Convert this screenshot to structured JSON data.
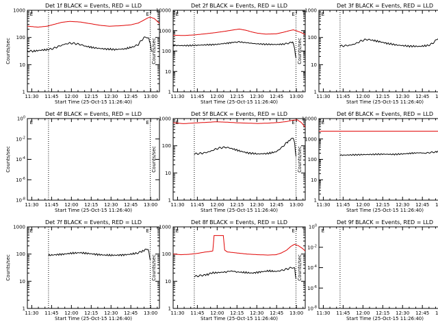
{
  "figure": {
    "start_time_label": "Start Time (25-Oct-15 11:26:40)",
    "ylabel": "Counts/sec",
    "time_ticks": [
      "11:30",
      "11:45",
      "12:00",
      "12:15",
      "12:30",
      "12:45",
      "13:00"
    ],
    "colors": {
      "events": "#000000",
      "lld": "#e00000",
      "axes": "#000000"
    }
  },
  "chart_data": [
    {
      "type": "line",
      "detector": "Det 1f",
      "title": "Det 1f BLACK = Events, RED = LLD",
      "xlabel": "Start Time (25-Oct-15 11:26:40)",
      "ylabel": "Counts/sec",
      "yscale": "log",
      "ylim": [
        1,
        1000
      ],
      "xlim_min": [
        0,
        100
      ],
      "y_tick_labels": [
        "1",
        "10",
        "100",
        "1000"
      ],
      "vlines_min": [
        16,
        93
      ],
      "markers": [
        {
          "label": "E",
          "x_min": 3,
          "y": 1000
        },
        {
          "label": "E",
          "x_min": 91,
          "y": 1000
        }
      ],
      "series": [
        {
          "name": "LLD",
          "color": "#e00000",
          "x": [
            0,
            8,
            15,
            22,
            26,
            32,
            40,
            48,
            55,
            62,
            70,
            78,
            84,
            88,
            91,
            93,
            96,
            100
          ],
          "y": [
            260,
            240,
            260,
            320,
            360,
            390,
            370,
            320,
            280,
            260,
            270,
            290,
            340,
            430,
            520,
            560,
            500,
            330
          ]
        },
        {
          "name": "Events",
          "color": "#000000",
          "x": [
            0,
            4,
            10,
            16,
            20,
            24,
            28,
            32,
            36,
            40,
            44,
            50,
            58,
            66,
            74,
            80,
            84,
            86,
            88,
            90,
            92,
            93,
            94
          ],
          "y": [
            32,
            31,
            34,
            36,
            40,
            48,
            56,
            62,
            60,
            55,
            48,
            42,
            38,
            36,
            38,
            45,
            55,
            75,
            95,
            105,
            90,
            60,
            30
          ]
        }
      ]
    },
    {
      "type": "line",
      "detector": "Det 2f",
      "title": "Det 2f BLACK = Events, RED = LLD",
      "xlabel": "Start Time (25-Oct-15 11:26:40)",
      "ylabel": "Counts/sec",
      "yscale": "log",
      "ylim": [
        1,
        10000
      ],
      "xlim_min": [
        0,
        100
      ],
      "y_tick_labels": [
        "1",
        "10",
        "100",
        "1000",
        "10000"
      ],
      "vlines_min": [
        16,
        93
      ],
      "markers": [
        {
          "label": "E",
          "x_min": 3,
          "y": 10000
        },
        {
          "label": "E",
          "x_min": 91,
          "y": 10000
        }
      ],
      "series": [
        {
          "name": "LLD",
          "color": "#e00000",
          "x": [
            0,
            8,
            16,
            24,
            32,
            40,
            46,
            50,
            55,
            60,
            64,
            70,
            78,
            84,
            88,
            91,
            94,
            97,
            100
          ],
          "y": [
            600,
            580,
            620,
            700,
            800,
            950,
            1100,
            1200,
            1050,
            850,
            750,
            680,
            700,
            850,
            1000,
            1100,
            950,
            800,
            650
          ]
        },
        {
          "name": "Events",
          "color": "#000000",
          "x": [
            0,
            8,
            16,
            24,
            32,
            40,
            46,
            50,
            55,
            62,
            70,
            78,
            84,
            88,
            90,
            91,
            92,
            93
          ],
          "y": [
            190,
            185,
            190,
            200,
            210,
            240,
            270,
            280,
            260,
            230,
            215,
            210,
            220,
            250,
            270,
            250,
            120,
            45
          ]
        }
      ]
    },
    {
      "type": "line",
      "detector": "Det 3f",
      "title": "Det 3f BLACK = Events, RED = LLD",
      "xlabel": "Start Time (25-Oct-15 11:26:40)",
      "ylabel": "Counts/sec",
      "yscale": "log",
      "ylim": [
        1,
        1000
      ],
      "xlim_min": [
        0,
        100
      ],
      "y_tick_labels": [
        "1",
        "10",
        "100",
        "1000"
      ],
      "vlines_min": [
        16,
        93
      ],
      "markers": [
        {
          "label": "E",
          "x_min": 3,
          "y": 1000
        },
        {
          "label": "E",
          "x_min": 91,
          "y": 1000
        }
      ],
      "series": [
        {
          "name": "Events",
          "color": "#000000",
          "x": [
            16,
            20,
            24,
            28,
            32,
            36,
            40,
            46,
            52,
            60,
            68,
            76,
            82,
            86,
            88,
            90,
            92,
            93,
            94
          ],
          "y": [
            48,
            50,
            52,
            60,
            75,
            85,
            80,
            70,
            60,
            52,
            48,
            47,
            50,
            60,
            75,
            90,
            105,
            95,
            45
          ]
        }
      ]
    },
    {
      "type": "line",
      "detector": "Det 4f",
      "title": "Det 4f BLACK = Events, RED = LLD",
      "xlabel": "Start Time (25-Oct-15 11:26:40)",
      "ylabel": "Counts/sec",
      "yscale": "log",
      "ylim": [
        1e-08,
        1
      ],
      "xlim_min": [
        0,
        100
      ],
      "y_tick_labels": [
        "10^0",
        "10^-2",
        "10^-4",
        "10^-6",
        "10^-8"
      ],
      "vlines_min": [
        16,
        93
      ],
      "markers": [
        {
          "label": "E",
          "x_min": 3,
          "y": 1
        },
        {
          "label": "E",
          "x_min": 91,
          "y": 1
        }
      ],
      "series": []
    },
    {
      "type": "line",
      "detector": "Det 5f",
      "title": "Det 5f BLACK = Events, RED = LLD",
      "xlabel": "Start Time (25-Oct-15 11:26:40)",
      "ylabel": "Counts/sec",
      "yscale": "log",
      "ylim": [
        1,
        1000
      ],
      "xlim_min": [
        0,
        100
      ],
      "y_tick_labels": [
        "1",
        "10",
        "100",
        "1000"
      ],
      "vlines_min": [
        16,
        93
      ],
      "markers": [
        {
          "label": "E",
          "x_min": 3,
          "y": 1000
        },
        {
          "label": "E",
          "x_min": 91,
          "y": 1000
        }
      ],
      "series": [
        {
          "name": "LLD",
          "color": "#e00000",
          "x": [
            0,
            8,
            16,
            24,
            32,
            40,
            48,
            56,
            64,
            72,
            80,
            86,
            90,
            94,
            97,
            100
          ],
          "y": [
            700,
            650,
            690,
            720,
            760,
            740,
            700,
            680,
            660,
            680,
            720,
            780,
            860,
            900,
            720,
            480
          ]
        },
        {
          "name": "Events",
          "color": "#000000",
          "x": [
            16,
            20,
            24,
            28,
            32,
            36,
            40,
            44,
            50,
            56,
            64,
            72,
            78,
            82,
            86,
            89,
            91,
            92,
            93
          ],
          "y": [
            50,
            52,
            55,
            62,
            75,
            85,
            88,
            80,
            65,
            55,
            50,
            52,
            60,
            85,
            130,
            170,
            200,
            120,
            40
          ]
        }
      ]
    },
    {
      "type": "line",
      "detector": "Det 6f",
      "title": "Det 6f BLACK = Events, RED = LLD",
      "xlabel": "Start Time (25-Oct-15 11:26:40)",
      "ylabel": "Counts/sec",
      "yscale": "log",
      "ylim": [
        1,
        10000
      ],
      "xlim_min": [
        0,
        100
      ],
      "y_tick_labels": [
        "1",
        "10",
        "100",
        "1000",
        "10000"
      ],
      "vlines_min": [
        16,
        93
      ],
      "markers": [
        {
          "label": "E",
          "x_min": 3,
          "y": 10000
        },
        {
          "label": "E",
          "x_min": 91,
          "y": 10000
        }
      ],
      "series": [
        {
          "name": "LLD",
          "color": "#e00000",
          "x": [
            0,
            50,
            100
          ],
          "y": [
            2400,
            2400,
            2400
          ]
        },
        {
          "name": "Events",
          "color": "#000000",
          "x": [
            16,
            24,
            32,
            40,
            48,
            56,
            64,
            70,
            76,
            80,
            84,
            88,
            91,
            92,
            93
          ],
          "y": [
            160,
            165,
            170,
            175,
            180,
            175,
            185,
            200,
            210,
            200,
            215,
            230,
            250,
            200,
            90
          ]
        }
      ]
    },
    {
      "type": "line",
      "detector": "Det 7f",
      "title": "Det 7f BLACK = Events, RED = LLD",
      "xlabel": "Start Time (25-Oct-15 11:26:40)",
      "ylabel": "Counts/sec",
      "yscale": "log",
      "ylim": [
        1,
        1000
      ],
      "xlim_min": [
        0,
        100
      ],
      "y_tick_labels": [
        "1",
        "10",
        "100",
        "1000"
      ],
      "vlines_min": [
        16,
        93
      ],
      "markers": [
        {
          "label": "E",
          "x_min": 3,
          "y": 1000
        },
        {
          "label": "E",
          "x_min": 91,
          "y": 1000
        }
      ],
      "series": [
        {
          "name": "Events",
          "color": "#000000",
          "x": [
            16,
            22,
            28,
            34,
            40,
            46,
            52,
            58,
            64,
            70,
            76,
            82,
            86,
            89,
            91,
            92,
            93
          ],
          "y": [
            90,
            95,
            100,
            108,
            112,
            105,
            98,
            92,
            90,
            92,
            96,
            105,
            120,
            140,
            160,
            120,
            60
          ]
        }
      ]
    },
    {
      "type": "line",
      "detector": "Det 8f",
      "title": "Det 8f BLACK = Events, RED = LLD",
      "xlabel": "Start Time (25-Oct-15 11:26:40)",
      "ylabel": "Counts/sec",
      "yscale": "log",
      "ylim": [
        1,
        1000
      ],
      "xlim_min": [
        0,
        100
      ],
      "y_tick_labels": [
        "1",
        "10",
        "100",
        "1000"
      ],
      "vlines_min": [
        16,
        93
      ],
      "markers": [
        {
          "label": "E",
          "x_min": 3,
          "y": 1000
        },
        {
          "label": "E",
          "x_min": 91,
          "y": 1000
        }
      ],
      "series": [
        {
          "name": "LLD",
          "color": "#e00000",
          "x": [
            0,
            6,
            12,
            18,
            24,
            28,
            30,
            31,
            38,
            39,
            41,
            48,
            56,
            64,
            72,
            78,
            82,
            86,
            89,
            92,
            95,
            98,
            100
          ],
          "y": [
            100,
            95,
            98,
            105,
            118,
            125,
            130,
            480,
            480,
            140,
            120,
            110,
            100,
            95,
            92,
            95,
            110,
            140,
            190,
            230,
            200,
            160,
            130
          ]
        },
        {
          "name": "Events",
          "color": "#000000",
          "x": [
            16,
            20,
            24,
            27,
            29,
            40,
            44,
            48,
            54,
            60,
            66,
            72,
            78,
            82,
            86,
            88,
            90,
            92,
            93
          ],
          "y": [
            15,
            16,
            17,
            18,
            20,
            22,
            24,
            22,
            21,
            20,
            22,
            24,
            23,
            25,
            28,
            30,
            32,
            30,
            12
          ]
        }
      ]
    },
    {
      "type": "line",
      "detector": "Det 9f",
      "title": "Det 9f BLACK = Events, RED = LLD",
      "xlabel": "Start Time (25-Oct-15 11:26:40)",
      "ylabel": "Counts/sec",
      "yscale": "log",
      "ylim": [
        1e-08,
        1
      ],
      "xlim_min": [
        0,
        100
      ],
      "y_tick_labels": [
        "10^0",
        "10^-2",
        "10^-4",
        "10^-6",
        "10^-8"
      ],
      "vlines_min": [
        16,
        93
      ],
      "markers": [
        {
          "label": "E",
          "x_min": 3,
          "y": 1
        },
        {
          "label": "E",
          "x_min": 91,
          "y": 1
        }
      ],
      "series": []
    }
  ]
}
